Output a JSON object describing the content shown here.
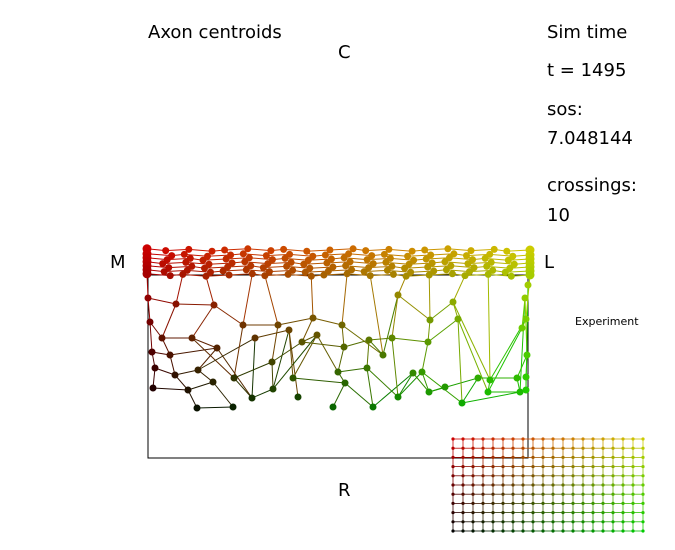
{
  "title": "Axon centroids",
  "labels": {
    "top": "C",
    "left": "M",
    "right": "L",
    "bottom": "R"
  },
  "sim": {
    "title": "Sim time",
    "time": "t =  1495",
    "sos_label": "sos:",
    "sos_value": "7.048144",
    "crossings_label": "crossings:",
    "crossings_value": "10"
  },
  "experiment_label": "Experiment",
  "colors": {
    "top_left": "#cc0000",
    "top_right": "#cccc00",
    "bottom_left": "#000000",
    "bottom_right": "#00cc00"
  },
  "grid": {
    "rows": 11,
    "cols": 20
  }
}
